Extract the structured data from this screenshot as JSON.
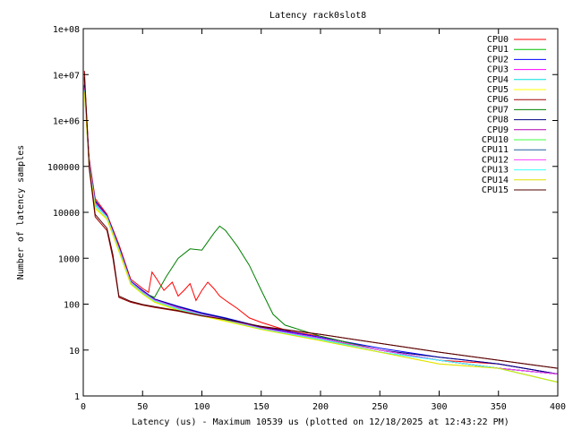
{
  "chart_data": {
    "type": "line",
    "title": "Latency rack0slot8",
    "xlabel": "Latency (us) - Maximum 10539 us (plotted on 12/18/2025 at 12:43:22 PM)",
    "ylabel": "Number of latency samples",
    "xlim": [
      0,
      400
    ],
    "ylim": [
      1,
      100000000
    ],
    "yscale": "log",
    "grid": false,
    "legend_position": "top-right",
    "x_ticks": [
      0,
      50,
      100,
      150,
      200,
      250,
      300,
      350,
      400
    ],
    "y_ticks": [
      {
        "value": 1,
        "label": "1"
      },
      {
        "value": 10,
        "label": "10"
      },
      {
        "value": 100,
        "label": "100"
      },
      {
        "value": 1000,
        "label": "1000"
      },
      {
        "value": 10000,
        "label": "10000"
      },
      {
        "value": 100000,
        "label": "100000"
      },
      {
        "value": 1000000,
        "label": "1e+06"
      },
      {
        "value": 10000000,
        "label": "1e+07"
      },
      {
        "value": 100000000,
        "label": "1e+08"
      }
    ],
    "series": [
      {
        "name": "CPU0",
        "color": "#ff0000",
        "points": [
          [
            1,
            8000000
          ],
          [
            5,
            150000
          ],
          [
            10,
            20000
          ],
          [
            20,
            9000
          ],
          [
            30,
            2000
          ],
          [
            40,
            350
          ],
          [
            50,
            220
          ],
          [
            55,
            180
          ],
          [
            58,
            500
          ],
          [
            62,
            350
          ],
          [
            68,
            200
          ],
          [
            75,
            300
          ],
          [
            80,
            150
          ],
          [
            85,
            200
          ],
          [
            90,
            280
          ],
          [
            95,
            120
          ],
          [
            100,
            200
          ],
          [
            105,
            300
          ],
          [
            110,
            220
          ],
          [
            115,
            150
          ],
          [
            120,
            120
          ],
          [
            130,
            80
          ],
          [
            140,
            50
          ],
          [
            150,
            40
          ],
          [
            175,
            25
          ],
          [
            200,
            20
          ],
          [
            250,
            10
          ],
          [
            300,
            6
          ],
          [
            350,
            5
          ],
          [
            400,
            3
          ]
        ]
      },
      {
        "name": "CPU1",
        "color": "#00c000",
        "points": [
          [
            1,
            5000000
          ],
          [
            5,
            120000
          ],
          [
            10,
            15000
          ],
          [
            20,
            8000
          ],
          [
            30,
            1500
          ],
          [
            40,
            300
          ],
          [
            50,
            180
          ],
          [
            60,
            120
          ],
          [
            80,
            80
          ],
          [
            100,
            60
          ],
          [
            120,
            45
          ],
          [
            150,
            30
          ],
          [
            200,
            18
          ],
          [
            250,
            10
          ],
          [
            300,
            6
          ],
          [
            350,
            4
          ],
          [
            400,
            3
          ]
        ]
      },
      {
        "name": "CPU2",
        "color": "#0000ff",
        "points": [
          [
            1,
            6000000
          ],
          [
            5,
            130000
          ],
          [
            10,
            18000
          ],
          [
            20,
            8500
          ],
          [
            30,
            1800
          ],
          [
            40,
            320
          ],
          [
            50,
            200
          ],
          [
            60,
            130
          ],
          [
            80,
            90
          ],
          [
            100,
            65
          ],
          [
            120,
            50
          ],
          [
            150,
            32
          ],
          [
            200,
            19
          ],
          [
            250,
            11
          ],
          [
            300,
            7
          ],
          [
            350,
            5
          ],
          [
            400,
            3
          ]
        ]
      },
      {
        "name": "CPU3",
        "color": "#ff00ff",
        "points": [
          [
            1,
            5500000
          ],
          [
            5,
            125000
          ],
          [
            10,
            17000
          ],
          [
            20,
            8200
          ],
          [
            30,
            1700
          ],
          [
            40,
            310
          ],
          [
            50,
            190
          ],
          [
            60,
            125
          ],
          [
            80,
            85
          ],
          [
            100,
            62
          ],
          [
            120,
            48
          ],
          [
            150,
            31
          ],
          [
            200,
            18
          ],
          [
            250,
            10
          ],
          [
            300,
            6
          ],
          [
            350,
            4
          ],
          [
            400,
            3
          ]
        ]
      },
      {
        "name": "CPU4",
        "color": "#00e0e0",
        "points": [
          [
            1,
            4500000
          ],
          [
            5,
            110000
          ],
          [
            10,
            14000
          ],
          [
            20,
            7800
          ],
          [
            30,
            1600
          ],
          [
            40,
            290
          ],
          [
            50,
            175
          ],
          [
            60,
            118
          ],
          [
            80,
            78
          ],
          [
            100,
            58
          ],
          [
            120,
            44
          ],
          [
            150,
            29
          ],
          [
            200,
            17
          ],
          [
            250,
            9
          ],
          [
            300,
            6
          ],
          [
            350,
            4
          ],
          [
            400,
            2
          ]
        ]
      },
      {
        "name": "CPU5",
        "color": "#ffff00",
        "points": [
          [
            1,
            4000000
          ],
          [
            5,
            100000
          ],
          [
            10,
            12000
          ],
          [
            20,
            7000
          ],
          [
            30,
            1400
          ],
          [
            40,
            270
          ],
          [
            50,
            165
          ],
          [
            60,
            110
          ],
          [
            80,
            72
          ],
          [
            100,
            55
          ],
          [
            120,
            42
          ],
          [
            150,
            28
          ],
          [
            200,
            16
          ],
          [
            250,
            9
          ],
          [
            300,
            5
          ],
          [
            350,
            4
          ],
          [
            400,
            2
          ]
        ]
      },
      {
        "name": "CPU6",
        "color": "#a00000",
        "points": [
          [
            1,
            12000000
          ],
          [
            5,
            90000
          ],
          [
            10,
            8000
          ],
          [
            20,
            4000
          ],
          [
            25,
            1000
          ],
          [
            30,
            140
          ],
          [
            40,
            110
          ],
          [
            50,
            95
          ],
          [
            60,
            85
          ],
          [
            80,
            70
          ],
          [
            100,
            55
          ],
          [
            120,
            45
          ],
          [
            150,
            32
          ],
          [
            200,
            22
          ],
          [
            250,
            14
          ],
          [
            300,
            9
          ],
          [
            350,
            6
          ],
          [
            400,
            4
          ]
        ]
      },
      {
        "name": "CPU7",
        "color": "#008000",
        "points": [
          [
            1,
            5000000
          ],
          [
            5,
            120000
          ],
          [
            10,
            15000
          ],
          [
            20,
            8000
          ],
          [
            30,
            1500
          ],
          [
            40,
            300
          ],
          [
            50,
            180
          ],
          [
            60,
            140
          ],
          [
            70,
            400
          ],
          [
            80,
            1000
          ],
          [
            90,
            1600
          ],
          [
            100,
            1500
          ],
          [
            110,
            3500
          ],
          [
            115,
            5000
          ],
          [
            120,
            4000
          ],
          [
            130,
            1800
          ],
          [
            140,
            700
          ],
          [
            150,
            200
          ],
          [
            160,
            60
          ],
          [
            170,
            35
          ],
          [
            200,
            20
          ],
          [
            250,
            10
          ],
          [
            300,
            6
          ],
          [
            350,
            4
          ],
          [
            400,
            3
          ]
        ]
      },
      {
        "name": "CPU8",
        "color": "#000080",
        "points": [
          [
            1,
            5800000
          ],
          [
            5,
            128000
          ],
          [
            10,
            17500
          ],
          [
            20,
            8300
          ],
          [
            30,
            1750
          ],
          [
            40,
            315
          ],
          [
            50,
            195
          ],
          [
            60,
            128
          ],
          [
            80,
            88
          ],
          [
            100,
            63
          ],
          [
            120,
            49
          ],
          [
            150,
            31
          ],
          [
            200,
            18
          ],
          [
            250,
            10
          ],
          [
            300,
            7
          ],
          [
            350,
            5
          ],
          [
            400,
            3
          ]
        ]
      },
      {
        "name": "CPU9",
        "color": "#b000b0",
        "points": [
          [
            1,
            5200000
          ],
          [
            5,
            118000
          ],
          [
            10,
            16000
          ],
          [
            20,
            8000
          ],
          [
            30,
            1650
          ],
          [
            40,
            305
          ],
          [
            50,
            185
          ],
          [
            60,
            122
          ],
          [
            80,
            82
          ],
          [
            100,
            60
          ],
          [
            120,
            46
          ],
          [
            150,
            30
          ],
          [
            200,
            18
          ],
          [
            250,
            10
          ],
          [
            300,
            6
          ],
          [
            350,
            4
          ],
          [
            400,
            3
          ]
        ]
      },
      {
        "name": "CPU10",
        "color": "#40ff40",
        "points": [
          [
            1,
            4800000
          ],
          [
            5,
            115000
          ],
          [
            10,
            15000
          ],
          [
            20,
            7900
          ],
          [
            30,
            1550
          ],
          [
            40,
            295
          ],
          [
            50,
            178
          ],
          [
            60,
            119
          ],
          [
            80,
            79
          ],
          [
            100,
            59
          ],
          [
            120,
            45
          ],
          [
            150,
            29
          ],
          [
            200,
            17
          ],
          [
            250,
            10
          ],
          [
            300,
            6
          ],
          [
            350,
            4
          ],
          [
            400,
            2
          ]
        ]
      },
      {
        "name": "CPU11",
        "color": "#2060a0",
        "points": [
          [
            1,
            5300000
          ],
          [
            5,
            122000
          ],
          [
            10,
            16500
          ],
          [
            20,
            8100
          ],
          [
            30,
            1680
          ],
          [
            40,
            308
          ],
          [
            50,
            188
          ],
          [
            60,
            124
          ],
          [
            80,
            84
          ],
          [
            100,
            61
          ],
          [
            120,
            47
          ],
          [
            150,
            30
          ],
          [
            200,
            18
          ],
          [
            250,
            10
          ],
          [
            300,
            6
          ],
          [
            350,
            4
          ],
          [
            400,
            3
          ]
        ]
      },
      {
        "name": "CPU12",
        "color": "#ff40ff",
        "points": [
          [
            1,
            5100000
          ],
          [
            5,
            119000
          ],
          [
            10,
            16200
          ],
          [
            20,
            8050
          ],
          [
            30,
            1660
          ],
          [
            40,
            306
          ],
          [
            50,
            186
          ],
          [
            60,
            123
          ],
          [
            80,
            83
          ],
          [
            100,
            60
          ],
          [
            120,
            46
          ],
          [
            150,
            30
          ],
          [
            200,
            18
          ],
          [
            250,
            10
          ],
          [
            300,
            6
          ],
          [
            350,
            4
          ],
          [
            400,
            3
          ]
        ]
      },
      {
        "name": "CPU13",
        "color": "#40ffff",
        "points": [
          [
            1,
            4600000
          ],
          [
            5,
            112000
          ],
          [
            10,
            14500
          ],
          [
            20,
            7850
          ],
          [
            30,
            1580
          ],
          [
            40,
            292
          ],
          [
            50,
            176
          ],
          [
            60,
            118
          ],
          [
            80,
            78
          ],
          [
            100,
            58
          ],
          [
            120,
            44
          ],
          [
            150,
            29
          ],
          [
            200,
            17
          ],
          [
            250,
            9
          ],
          [
            300,
            6
          ],
          [
            350,
            4
          ],
          [
            400,
            2
          ]
        ]
      },
      {
        "name": "CPU14",
        "color": "#e0e000",
        "points": [
          [
            1,
            4200000
          ],
          [
            5,
            105000
          ],
          [
            10,
            12500
          ],
          [
            20,
            7200
          ],
          [
            30,
            1450
          ],
          [
            40,
            275
          ],
          [
            50,
            168
          ],
          [
            60,
            112
          ],
          [
            80,
            74
          ],
          [
            100,
            56
          ],
          [
            120,
            43
          ],
          [
            150,
            28
          ],
          [
            200,
            16
          ],
          [
            250,
            9
          ],
          [
            300,
            5
          ],
          [
            350,
            4
          ],
          [
            400,
            2
          ]
        ]
      },
      {
        "name": "CPU15",
        "color": "#500000",
        "points": [
          [
            1,
            9000000
          ],
          [
            5,
            100000
          ],
          [
            10,
            9000
          ],
          [
            20,
            4500
          ],
          [
            25,
            1200
          ],
          [
            30,
            150
          ],
          [
            40,
            115
          ],
          [
            50,
            98
          ],
          [
            60,
            88
          ],
          [
            80,
            72
          ],
          [
            100,
            56
          ],
          [
            120,
            46
          ],
          [
            150,
            33
          ],
          [
            200,
            22
          ],
          [
            250,
            14
          ],
          [
            300,
            9
          ],
          [
            350,
            6
          ],
          [
            400,
            4
          ]
        ]
      }
    ]
  }
}
